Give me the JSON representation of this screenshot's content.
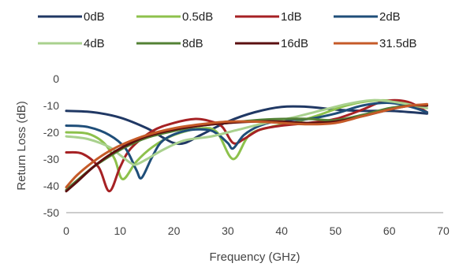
{
  "chart_data": {
    "type": "line",
    "title": "",
    "xlabel": "Frequency (GHz)",
    "ylabel": "Return Loss (dB)",
    "xlim": [
      0,
      70
    ],
    "ylim": [
      -50,
      0
    ],
    "xticks": [
      0,
      10,
      20,
      30,
      40,
      50,
      60,
      70
    ],
    "yticks": [
      0,
      -10,
      -20,
      -30,
      -40,
      -50
    ],
    "grid": false,
    "legend_position": "top",
    "series": [
      {
        "name": "0dB",
        "color": "#203864",
        "points": [
          [
            0,
            -12
          ],
          [
            5,
            -12.5
          ],
          [
            10,
            -14.5
          ],
          [
            15,
            -18.5
          ],
          [
            18,
            -22
          ],
          [
            20,
            -24
          ],
          [
            22,
            -24
          ],
          [
            25,
            -21
          ],
          [
            30,
            -16
          ],
          [
            35,
            -12.5
          ],
          [
            40,
            -10.5
          ],
          [
            45,
            -10.5
          ],
          [
            50,
            -11.5
          ],
          [
            55,
            -12
          ],
          [
            60,
            -12
          ],
          [
            64,
            -12.5
          ],
          [
            67,
            -13
          ]
        ]
      },
      {
        "name": "0.5dB",
        "color": "#8DC14C",
        "points": [
          [
            0,
            -20
          ],
          [
            4,
            -20.5
          ],
          [
            7,
            -24
          ],
          [
            9,
            -30
          ],
          [
            10.5,
            -37.5
          ],
          [
            13,
            -31
          ],
          [
            16,
            -25.5
          ],
          [
            20,
            -21
          ],
          [
            25,
            -18.5
          ],
          [
            28,
            -20
          ],
          [
            31,
            -30
          ],
          [
            34,
            -21
          ],
          [
            38,
            -18
          ],
          [
            42,
            -16.5
          ],
          [
            47,
            -13.5
          ],
          [
            52,
            -10
          ],
          [
            57,
            -8.2
          ],
          [
            62,
            -8.5
          ],
          [
            65,
            -10.5
          ],
          [
            67,
            -12.5
          ]
        ]
      },
      {
        "name": "1dB",
        "color": "#A62124",
        "points": [
          [
            0,
            -27.5
          ],
          [
            3,
            -28
          ],
          [
            6,
            -33
          ],
          [
            8,
            -42
          ],
          [
            10,
            -33
          ],
          [
            12,
            -26
          ],
          [
            16,
            -19.5
          ],
          [
            20,
            -16.5
          ],
          [
            24,
            -15
          ],
          [
            27,
            -16
          ],
          [
            29,
            -18
          ],
          [
            31,
            -24
          ],
          [
            33,
            -22.5
          ],
          [
            36,
            -19
          ],
          [
            40,
            -17.5
          ],
          [
            45,
            -16.5
          ],
          [
            50,
            -15
          ],
          [
            55,
            -11.5
          ],
          [
            58,
            -9
          ],
          [
            61,
            -8
          ],
          [
            64,
            -9
          ],
          [
            67,
            -12.5
          ]
        ]
      },
      {
        "name": "2dB",
        "color": "#1F4E79",
        "points": [
          [
            0,
            -17.5
          ],
          [
            4,
            -18
          ],
          [
            8,
            -21
          ],
          [
            11,
            -26
          ],
          [
            13,
            -34
          ],
          [
            14,
            -37
          ],
          [
            16,
            -29
          ],
          [
            18,
            -23
          ],
          [
            22,
            -19.5
          ],
          [
            26,
            -19
          ],
          [
            28,
            -20.5
          ],
          [
            30,
            -24
          ],
          [
            31,
            -26
          ],
          [
            33,
            -21
          ],
          [
            36,
            -17.5
          ],
          [
            40,
            -15.5
          ],
          [
            45,
            -15
          ],
          [
            50,
            -13
          ],
          [
            55,
            -10
          ],
          [
            60,
            -9
          ],
          [
            64,
            -10.5
          ],
          [
            67,
            -12.5
          ]
        ]
      },
      {
        "name": "4dB",
        "color": "#A9D18E",
        "points": [
          [
            0,
            -21.5
          ],
          [
            4,
            -22.5
          ],
          [
            8,
            -25.5
          ],
          [
            10,
            -28.5
          ],
          [
            12,
            -31.5
          ],
          [
            13,
            -32
          ],
          [
            15,
            -30
          ],
          [
            18,
            -26.5
          ],
          [
            22,
            -23
          ],
          [
            27,
            -21.5
          ],
          [
            32,
            -19
          ],
          [
            37,
            -16.5
          ],
          [
            42,
            -14.5
          ],
          [
            47,
            -12
          ],
          [
            52,
            -9.5
          ],
          [
            57,
            -8
          ],
          [
            62,
            -9
          ],
          [
            67,
            -11
          ]
        ]
      },
      {
        "name": "8dB",
        "color": "#538135",
        "points": [
          [
            0,
            -41.5
          ],
          [
            2,
            -38
          ],
          [
            5,
            -33
          ],
          [
            8,
            -29
          ],
          [
            11,
            -25.5
          ],
          [
            15,
            -22
          ],
          [
            20,
            -19.5
          ],
          [
            25,
            -17.5
          ],
          [
            30,
            -16.5
          ],
          [
            35,
            -15.5
          ],
          [
            40,
            -15
          ],
          [
            45,
            -15
          ],
          [
            50,
            -15.5
          ],
          [
            55,
            -13.5
          ],
          [
            60,
            -11
          ],
          [
            64,
            -10
          ],
          [
            67,
            -10
          ]
        ]
      },
      {
        "name": "16dB",
        "color": "#5B0F10",
        "points": [
          [
            0,
            -42
          ],
          [
            2,
            -38.5
          ],
          [
            5,
            -33
          ],
          [
            8,
            -28.5
          ],
          [
            11,
            -25
          ],
          [
            15,
            -21.5
          ],
          [
            20,
            -19
          ],
          [
            25,
            -17.5
          ],
          [
            30,
            -16.5
          ],
          [
            35,
            -16
          ],
          [
            40,
            -16
          ],
          [
            45,
            -16.5
          ],
          [
            50,
            -16
          ],
          [
            55,
            -14
          ],
          [
            60,
            -11.5
          ],
          [
            64,
            -10
          ],
          [
            67,
            -10
          ]
        ]
      },
      {
        "name": "31.5dB",
        "color": "#C55A28",
        "points": [
          [
            0,
            -40.5
          ],
          [
            2,
            -36
          ],
          [
            5,
            -31
          ],
          [
            8,
            -27
          ],
          [
            11,
            -24
          ],
          [
            15,
            -21
          ],
          [
            20,
            -18.5
          ],
          [
            25,
            -17
          ],
          [
            30,
            -16
          ],
          [
            35,
            -16
          ],
          [
            40,
            -16.5
          ],
          [
            45,
            -17
          ],
          [
            50,
            -16.5
          ],
          [
            55,
            -14
          ],
          [
            60,
            -11.5
          ],
          [
            64,
            -10
          ],
          [
            67,
            -9.5
          ]
        ]
      }
    ]
  }
}
